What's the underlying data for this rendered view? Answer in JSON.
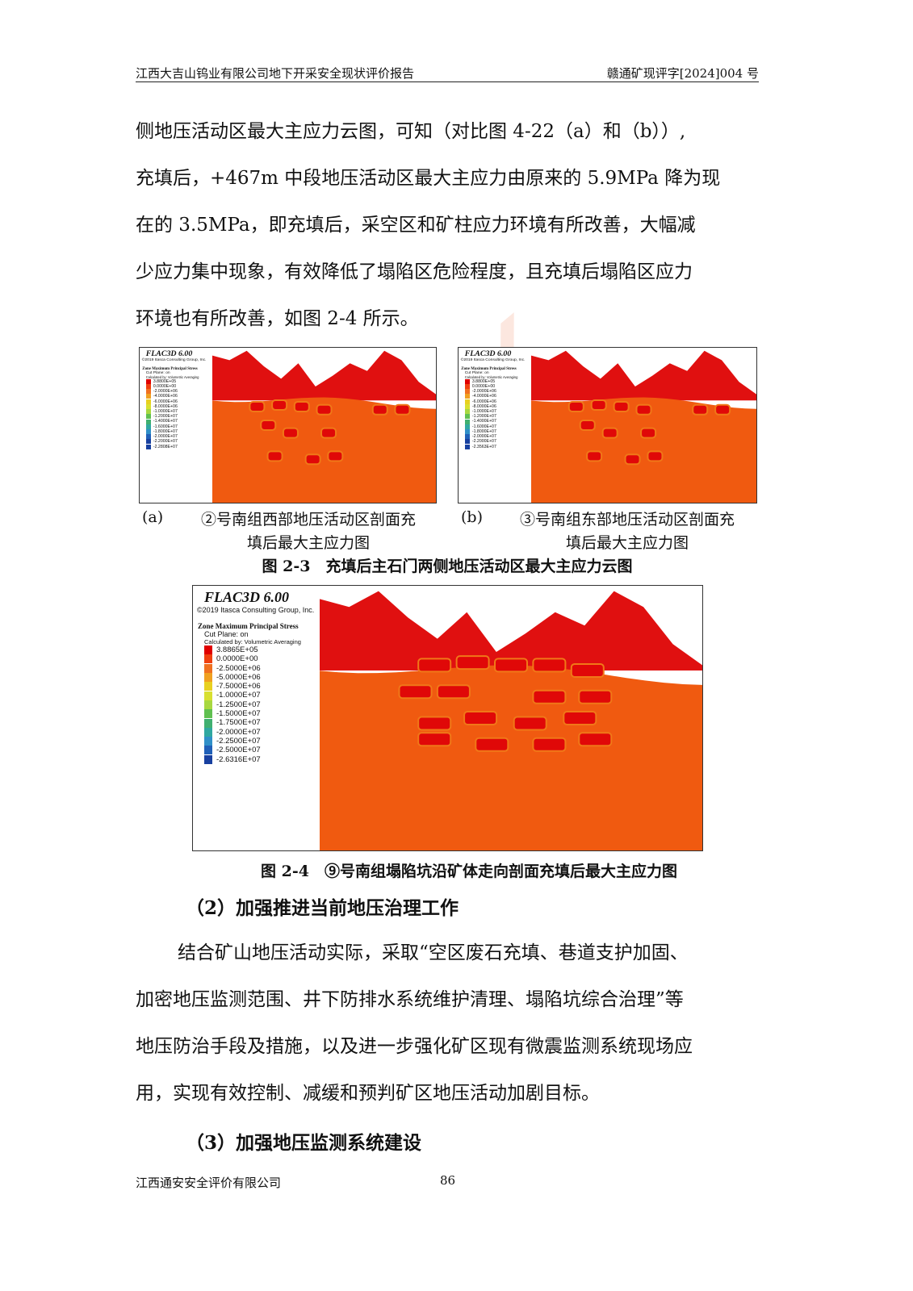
{
  "header": {
    "left": "江西大吉山钨业有限公司地下开采安全现状评价报告",
    "right": "赣通矿现评字[2024]004 号"
  },
  "para1": [
    "侧地压活动区最大主应力云图，可知（对比图 4-22（a）和（b））,",
    "充填后，+467m 中段地压活动区最大主应力由原来的 5.9MPa 降为现",
    "在的 3.5MPa，即充填后，采空区和矿柱应力环境有所改善，大幅减",
    "少应力集中现象，有效降低了塌陷区危险程度，且充填后塌陷区应力",
    "环境也有所改善，如图 2-4 所示。"
  ],
  "fig_a": {
    "title": "FLAC3D 6.00",
    "copyright": "©2019 Itasca Consulting Group, Inc.",
    "plot": "Zone Maximum Principal Stress",
    "cut": "Cut Plane: on",
    "calc": "Calculated by: Volumetric Averaging",
    "legend": [
      "3.8800E+05",
      "0.0000E+00",
      "-2.0000E+06",
      "-4.0000E+06",
      "-6.0000E+06",
      "-8.0000E+06",
      "-1.0000E+07",
      "-1.2000E+07",
      "-1.4000E+07",
      "-1.6000E+07",
      "-1.8000E+07",
      "-2.0000E+07",
      "-2.2000E+07",
      "-2.2808E+07"
    ],
    "caption_label": "(a)",
    "caption": [
      "②号南组西部地压活动区剖面充",
      "填后最大主应力图"
    ]
  },
  "fig_b": {
    "title": "FLAC3D 6.00",
    "copyright": "©2019 Itasca Consulting Group, Inc.",
    "plot": "Zone Maximum Principal Stress",
    "cut": "Cut Plane: on",
    "calc": "Calculated by: Volumetric Averaging",
    "legend": [
      "3.8800E+05",
      "0.0000E+00",
      "-2.0000E+06",
      "-4.0000E+06",
      "-6.0000E+06",
      "-8.0000E+06",
      "-1.0000E+07",
      "-1.2000E+07",
      "-1.4000E+07",
      "-1.6000E+07",
      "-1.8000E+07",
      "-2.0000E+07",
      "-2.2000E+07",
      "-2.3563E+07"
    ],
    "caption_label": "(b)",
    "caption": [
      "③号南组东部地压活动区剖面充",
      "填后最大主应力图"
    ]
  },
  "fig23_caption": "图 2-3　充填后主石门两侧地压活动区最大主应力云图",
  "fig_c": {
    "title": "FLAC3D 6.00",
    "copyright": "©2019 Itasca Consulting Group, Inc.",
    "plot": "Zone Maximum Principal Stress",
    "cut": "Cut Plane: on",
    "calc": "Calculated by: Volumetric Averaging",
    "legend": [
      "3.8865E+05",
      "0.0000E+00",
      "-2.5000E+06",
      "-5.0000E+06",
      "-7.5000E+06",
      "-1.0000E+07",
      "-1.2500E+07",
      "-1.5000E+07",
      "-1.7500E+07",
      "-2.0000E+07",
      "-2.2500E+07",
      "-2.5000E+07",
      "-2.6316E+07"
    ]
  },
  "fig24_caption": "图 2-4　⑨号南组塌陷坑沿矿体走向剖面充填后最大主应力图",
  "heading2": "（2）加强推进当前地压治理工作",
  "para2": [
    "结合矿山地压活动实际，采取“空区废石充填、巷道支护加固、",
    "加密地压监测范围、井下防排水系统维护清理、塌陷坑综合治理”等",
    "地压防治手段及措施，以及进一步强化矿区现有微震监测系统现场应",
    "用，实现有效控制、减缓和预判矿区地压活动加剧目标。"
  ],
  "heading3": "（3）加强地压监测系统建设",
  "footer": {
    "company": "江西通安安全评价有限公司",
    "page": "86"
  },
  "colors": {
    "scale": [
      "#e00000",
      "#f04010",
      "#f07020",
      "#f0a020",
      "#e8d020",
      "#d8e030",
      "#a8d840",
      "#60c050",
      "#40b070",
      "#30a8a0",
      "#3090c8",
      "#2060b8",
      "#1840a0"
    ]
  }
}
